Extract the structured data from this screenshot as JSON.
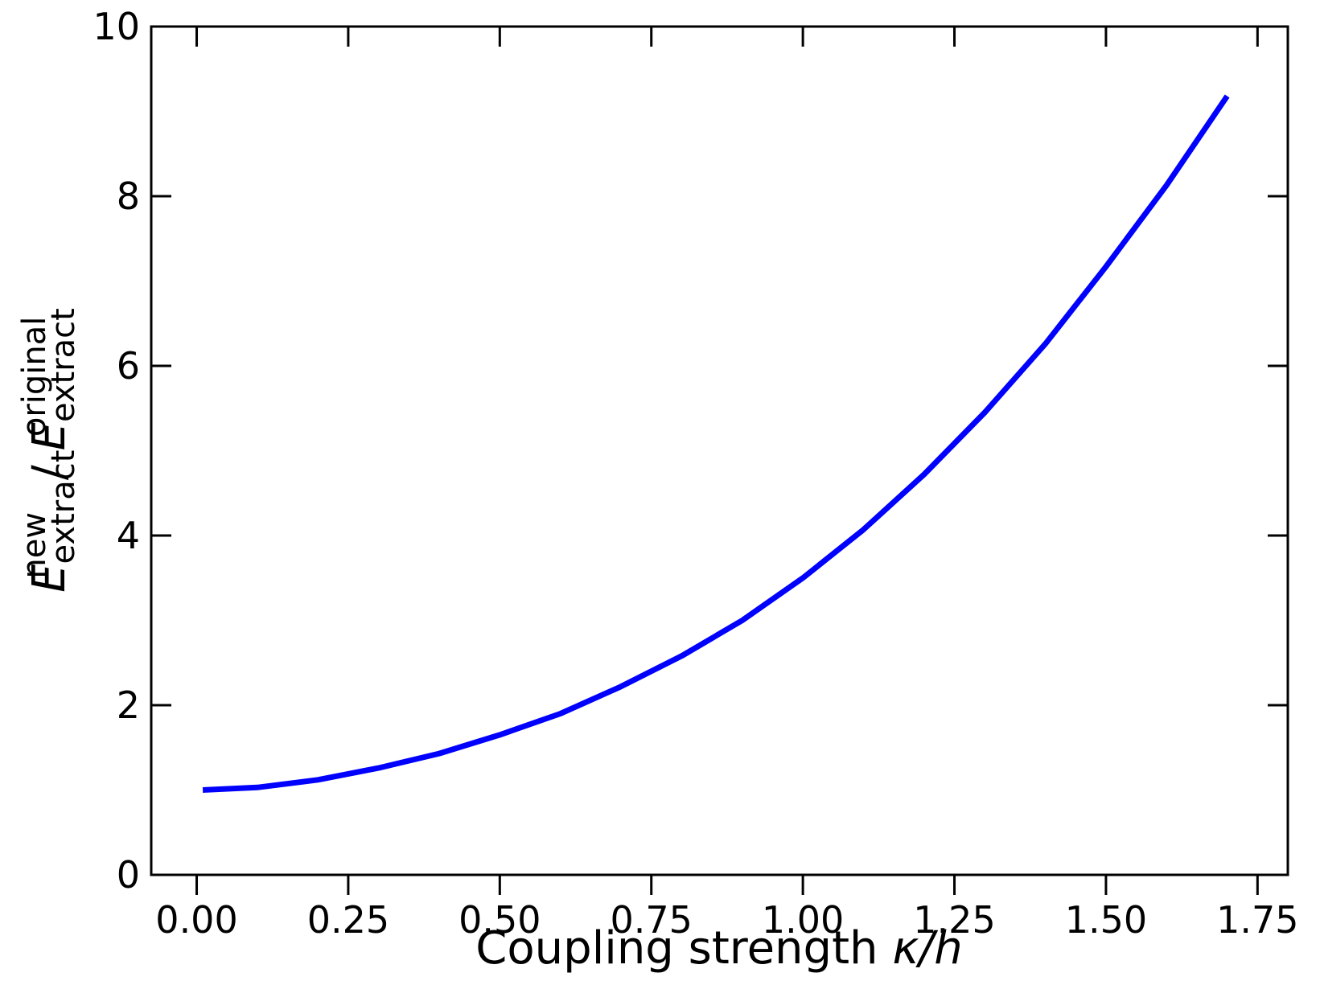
{
  "chart_data": {
    "type": "line",
    "title": "",
    "xlabel": {
      "text": "Coupling strength ",
      "var": "κ/h"
    },
    "ylabel": {
      "num_main": "E",
      "num_sub": "extract",
      "num_sup": "new",
      "sep": " / ",
      "den_main": "E",
      "den_sub": "extract",
      "den_sup": "original"
    },
    "xlim": [
      -0.075,
      1.8
    ],
    "ylim": [
      0,
      10
    ],
    "xticks": [
      0.0,
      0.25,
      0.5,
      0.75,
      1.0,
      1.25,
      1.5,
      1.75
    ],
    "xtick_labels": [
      "0.00",
      "0.25",
      "0.50",
      "0.75",
      "1.00",
      "1.25",
      "1.50",
      "1.75"
    ],
    "yticks": [
      0,
      2,
      4,
      6,
      8,
      10
    ],
    "ytick_labels": [
      "0",
      "2",
      "4",
      "6",
      "8",
      "10"
    ],
    "grid": false,
    "legend": "none",
    "series": [
      {
        "color": "#0000ff",
        "x": [
          0.01,
          0.1,
          0.2,
          0.3,
          0.4,
          0.5,
          0.6,
          0.7,
          0.8,
          0.9,
          1.0,
          1.1,
          1.2,
          1.3,
          1.4,
          1.5,
          1.6,
          1.7
        ],
        "y": [
          1.0,
          1.03,
          1.12,
          1.26,
          1.43,
          1.65,
          1.9,
          2.22,
          2.58,
          3.0,
          3.5,
          4.07,
          4.72,
          5.45,
          6.26,
          7.17,
          8.13,
          9.18
        ]
      }
    ]
  }
}
